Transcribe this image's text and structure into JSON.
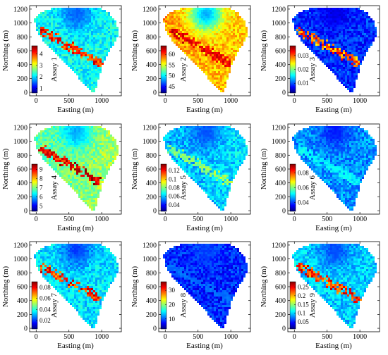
{
  "chart_data": {
    "type": "heatmap",
    "layout": "3x3 grid of spatial assay maps",
    "colormap": "jet",
    "xlabel": "Easting (m)",
    "ylabel": "Northing (m)",
    "xlim": [
      -100,
      1300
    ],
    "ylim": [
      -50,
      1250
    ],
    "xticks": [
      0,
      500,
      1000
    ],
    "yticks": [
      0,
      200,
      400,
      600,
      800,
      1000,
      1200
    ],
    "panels": [
      {
        "colorbar_label": "Assay 1",
        "cbar_ticks": [
          "1",
          "2",
          "3",
          "4"
        ],
        "cbar_range": [
          0.6,
          4.7
        ],
        "background": 0.38,
        "hot": 0.95,
        "cold_ne": 0.18,
        "se_bias": 0.0
      },
      {
        "colorbar_label": "Assay 2",
        "cbar_ticks": [
          "45",
          "50",
          "55",
          "60"
        ],
        "cbar_range": [
          42,
          64
        ],
        "background": 0.72,
        "hot": 0.97,
        "cold_ne": 0.22,
        "se_bias": -0.05
      },
      {
        "colorbar_label": "Assay 3",
        "cbar_ticks": [
          "0.01",
          "0.02",
          "0.03"
        ],
        "cbar_range": [
          0.003,
          0.037
        ],
        "background": 0.17,
        "hot": 0.93,
        "cold_ne": 0.08,
        "se_bias": 0.0
      },
      {
        "colorbar_label": "Assay 4",
        "cbar_ticks": [
          "5",
          "6",
          "7",
          "8",
          "9"
        ],
        "cbar_range": [
          4.4,
          9.6
        ],
        "background": 0.46,
        "hot": 0.97,
        "cold_ne": 0.2,
        "se_bias": 0.08
      },
      {
        "colorbar_label": "Assay 5",
        "cbar_ticks": [
          "0.04",
          "0.06",
          "0.08",
          "0.1",
          "0.12"
        ],
        "cbar_range": [
          0.025,
          0.135
        ],
        "background": 0.3,
        "hot": 0.55,
        "cold_ne": 0.15,
        "se_bias": 0.05
      },
      {
        "colorbar_label": "Assay 6",
        "cbar_ticks": [
          "0.04",
          "0.06",
          "0.08"
        ],
        "cbar_range": [
          0.028,
          0.092
        ],
        "background": 0.27,
        "hot": 0.4,
        "cold_ne": 0.12,
        "se_bias": 0.0
      },
      {
        "colorbar_label": "Assay 7",
        "cbar_ticks": [
          "0.02",
          "0.04",
          "0.06",
          "0.08"
        ],
        "cbar_range": [
          0.005,
          0.09
        ],
        "background": 0.35,
        "hot": 0.95,
        "cold_ne": 0.14,
        "se_bias": 0.0
      },
      {
        "colorbar_label": "Assay 8",
        "cbar_ticks": [
          "10",
          "20",
          "30"
        ],
        "cbar_range": [
          3,
          36
        ],
        "background": 0.16,
        "hot": 0.25,
        "cold_ne": 0.2,
        "se_bias": 0.0
      },
      {
        "colorbar_label": "Assay 9",
        "cbar_ticks": [
          "0.05",
          "0.1",
          "0.15",
          "0.2",
          "0.25"
        ],
        "cbar_range": [
          0.01,
          0.28
        ],
        "background": 0.33,
        "hot": 0.95,
        "cold_ne": 0.16,
        "se_bias": 0.0
      }
    ]
  }
}
